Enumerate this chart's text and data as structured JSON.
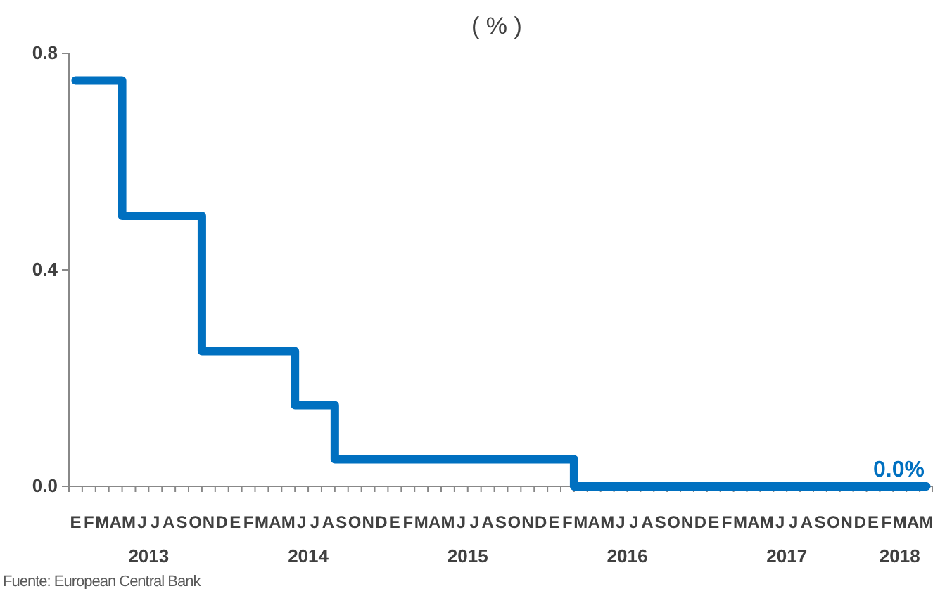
{
  "chart_data": {
    "type": "step",
    "title": "( % )",
    "categories": [
      "E",
      "F",
      "M",
      "A",
      "M",
      "J",
      "J",
      "A",
      "S",
      "O",
      "N",
      "D",
      "E",
      "F",
      "M",
      "A",
      "M",
      "J",
      "J",
      "A",
      "S",
      "O",
      "N",
      "D",
      "E",
      "F",
      "M",
      "A",
      "M",
      "J",
      "J",
      "A",
      "S",
      "O",
      "N",
      "D",
      "E",
      "F",
      "M",
      "A",
      "M",
      "J",
      "J",
      "A",
      "S",
      "O",
      "N",
      "D",
      "E",
      "F",
      "M",
      "A",
      "M",
      "J",
      "J",
      "A",
      "S",
      "O",
      "N",
      "D",
      "E",
      "F",
      "M",
      "A",
      "M"
    ],
    "values": [
      0.75,
      0.75,
      0.75,
      0.75,
      0.5,
      0.5,
      0.5,
      0.5,
      0.5,
      0.5,
      0.25,
      0.25,
      0.25,
      0.25,
      0.25,
      0.25,
      0.25,
      0.15,
      0.15,
      0.15,
      0.05,
      0.05,
      0.05,
      0.05,
      0.05,
      0.05,
      0.05,
      0.05,
      0.05,
      0.05,
      0.05,
      0.05,
      0.05,
      0.05,
      0.05,
      0.05,
      0.05,
      0.05,
      0,
      0,
      0,
      0,
      0,
      0,
      0,
      0,
      0,
      0,
      0,
      0,
      0,
      0,
      0,
      0,
      0,
      0,
      0,
      0,
      0,
      0,
      0,
      0,
      0,
      0,
      0
    ],
    "value_labels": [
      null,
      null,
      null,
      null,
      null,
      null,
      null,
      null,
      null,
      null,
      null,
      null,
      null,
      null,
      null,
      null,
      null,
      null,
      null,
      null,
      null,
      null,
      null,
      null,
      null,
      null,
      null,
      null,
      null,
      null,
      null,
      null,
      null,
      null,
      null,
      null,
      null,
      null,
      null,
      null,
      null,
      null,
      null,
      null,
      null,
      null,
      null,
      null,
      null,
      null,
      null,
      null,
      null,
      null,
      null,
      null,
      null,
      null,
      null,
      null,
      null,
      null,
      null,
      null,
      "0.0%"
    ],
    "color": "#0070c0",
    "line_style": "solid",
    "ylim": [
      0,
      0.8
    ],
    "yticks": [
      {
        "value": 0,
        "label": "0.0"
      },
      {
        "value": 0.4,
        "label": "0.4"
      },
      {
        "value": 0.8,
        "label": "0.8"
      }
    ],
    "annotations": [
      "2013",
      "2014",
      "2015",
      "2016",
      "2017",
      "2018",
      "Fuente: European Central Bank"
    ]
  }
}
